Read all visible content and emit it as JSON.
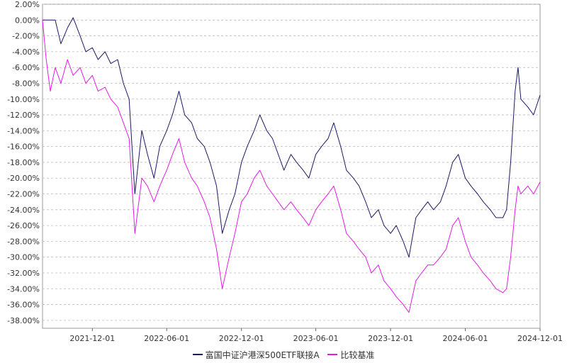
{
  "chart_data": {
    "type": "line",
    "ylim": [
      -0.39,
      0.02
    ],
    "y_ticks": [
      "2.00%",
      "0.00%",
      "-2.00%",
      "-4.00%",
      "-6.00%",
      "-8.00%",
      "-10.00%",
      "-12.00%",
      "-14.00%",
      "-16.00%",
      "-18.00%",
      "-20.00%",
      "-22.00%",
      "-24.00%",
      "-26.00%",
      "-28.00%",
      "-30.00%",
      "-32.00%",
      "-34.00%",
      "-36.00%",
      "-38.00%"
    ],
    "y_tick_values": [
      0.02,
      0.0,
      -0.02,
      -0.04,
      -0.06,
      -0.08,
      -0.1,
      -0.12,
      -0.14,
      -0.16,
      -0.18,
      -0.2,
      -0.22,
      -0.24,
      -0.26,
      -0.28,
      -0.3,
      -0.32,
      -0.34,
      -0.36,
      -0.38
    ],
    "xlim": [
      "2021-08-01",
      "2024-12-01"
    ],
    "x_ticks": [
      "2021-12-01",
      "2022-06-01",
      "2022-12-01",
      "2023-06-01",
      "2023-12-01",
      "2024-06-01",
      "2024-12-01"
    ],
    "grid": true,
    "legend_position": "bottom",
    "series": [
      {
        "name": "富国中证沪港深500ETF联接A",
        "color": "#1a1a66",
        "points": [
          [
            "2021-08-01",
            0.0
          ],
          [
            "2021-09-01",
            0.0
          ],
          [
            "2021-09-15",
            -0.03
          ],
          [
            "2021-10-01",
            -0.01
          ],
          [
            "2021-10-15",
            0.003
          ],
          [
            "2021-11-01",
            -0.02
          ],
          [
            "2021-11-15",
            -0.04
          ],
          [
            "2021-12-01",
            -0.035
          ],
          [
            "2021-12-15",
            -0.05
          ],
          [
            "2022-01-01",
            -0.04
          ],
          [
            "2022-01-15",
            -0.055
          ],
          [
            "2022-02-01",
            -0.05
          ],
          [
            "2022-02-15",
            -0.08
          ],
          [
            "2022-03-01",
            -0.1
          ],
          [
            "2022-03-15",
            -0.22
          ],
          [
            "2022-04-01",
            -0.14
          ],
          [
            "2022-04-15",
            -0.17
          ],
          [
            "2022-05-01",
            -0.2
          ],
          [
            "2022-05-15",
            -0.16
          ],
          [
            "2022-06-01",
            -0.14
          ],
          [
            "2022-06-15",
            -0.12
          ],
          [
            "2022-07-01",
            -0.09
          ],
          [
            "2022-07-15",
            -0.12
          ],
          [
            "2022-08-01",
            -0.13
          ],
          [
            "2022-08-15",
            -0.15
          ],
          [
            "2022-09-01",
            -0.16
          ],
          [
            "2022-09-15",
            -0.18
          ],
          [
            "2022-10-01",
            -0.21
          ],
          [
            "2022-10-15",
            -0.27
          ],
          [
            "2022-11-01",
            -0.24
          ],
          [
            "2022-11-15",
            -0.22
          ],
          [
            "2022-12-01",
            -0.18
          ],
          [
            "2022-12-15",
            -0.16
          ],
          [
            "2023-01-01",
            -0.14
          ],
          [
            "2023-01-15",
            -0.12
          ],
          [
            "2023-02-01",
            -0.14
          ],
          [
            "2023-02-15",
            -0.15
          ],
          [
            "2023-03-01",
            -0.17
          ],
          [
            "2023-03-15",
            -0.19
          ],
          [
            "2023-04-01",
            -0.17
          ],
          [
            "2023-04-15",
            -0.18
          ],
          [
            "2023-05-01",
            -0.19
          ],
          [
            "2023-05-15",
            -0.2
          ],
          [
            "2023-06-01",
            -0.17
          ],
          [
            "2023-06-15",
            -0.16
          ],
          [
            "2023-07-01",
            -0.15
          ],
          [
            "2023-07-15",
            -0.13
          ],
          [
            "2023-08-01",
            -0.16
          ],
          [
            "2023-08-15",
            -0.19
          ],
          [
            "2023-09-01",
            -0.2
          ],
          [
            "2023-09-15",
            -0.21
          ],
          [
            "2023-10-01",
            -0.23
          ],
          [
            "2023-10-15",
            -0.25
          ],
          [
            "2023-11-01",
            -0.24
          ],
          [
            "2023-11-15",
            -0.26
          ],
          [
            "2023-12-01",
            -0.27
          ],
          [
            "2023-12-15",
            -0.26
          ],
          [
            "2024-01-01",
            -0.28
          ],
          [
            "2024-01-15",
            -0.3
          ],
          [
            "2024-02-01",
            -0.25
          ],
          [
            "2024-02-15",
            -0.24
          ],
          [
            "2024-03-01",
            -0.23
          ],
          [
            "2024-03-15",
            -0.24
          ],
          [
            "2024-04-01",
            -0.23
          ],
          [
            "2024-04-15",
            -0.21
          ],
          [
            "2024-05-01",
            -0.18
          ],
          [
            "2024-05-15",
            -0.17
          ],
          [
            "2024-06-01",
            -0.2
          ],
          [
            "2024-06-15",
            -0.21
          ],
          [
            "2024-07-01",
            -0.22
          ],
          [
            "2024-07-15",
            -0.23
          ],
          [
            "2024-08-01",
            -0.24
          ],
          [
            "2024-08-15",
            -0.25
          ],
          [
            "2024-09-01",
            -0.25
          ],
          [
            "2024-09-10",
            -0.24
          ],
          [
            "2024-09-20",
            -0.18
          ],
          [
            "2024-10-01",
            -0.09
          ],
          [
            "2024-10-08",
            -0.06
          ],
          [
            "2024-10-15",
            -0.1
          ],
          [
            "2024-11-01",
            -0.11
          ],
          [
            "2024-11-15",
            -0.12
          ],
          [
            "2024-12-01",
            -0.095
          ]
        ]
      },
      {
        "name": "比较基准",
        "color": "#e31ae3",
        "points": [
          [
            "2021-08-01",
            0.0
          ],
          [
            "2021-08-10",
            -0.05
          ],
          [
            "2021-08-20",
            -0.09
          ],
          [
            "2021-09-01",
            -0.06
          ],
          [
            "2021-09-15",
            -0.08
          ],
          [
            "2021-10-01",
            -0.05
          ],
          [
            "2021-10-15",
            -0.07
          ],
          [
            "2021-11-01",
            -0.06
          ],
          [
            "2021-11-15",
            -0.08
          ],
          [
            "2021-12-01",
            -0.07
          ],
          [
            "2021-12-15",
            -0.09
          ],
          [
            "2022-01-01",
            -0.085
          ],
          [
            "2022-01-15",
            -0.1
          ],
          [
            "2022-02-01",
            -0.11
          ],
          [
            "2022-02-15",
            -0.13
          ],
          [
            "2022-03-01",
            -0.15
          ],
          [
            "2022-03-15",
            -0.27
          ],
          [
            "2022-04-01",
            -0.2
          ],
          [
            "2022-04-15",
            -0.21
          ],
          [
            "2022-05-01",
            -0.23
          ],
          [
            "2022-05-15",
            -0.21
          ],
          [
            "2022-06-01",
            -0.19
          ],
          [
            "2022-06-15",
            -0.17
          ],
          [
            "2022-07-01",
            -0.15
          ],
          [
            "2022-07-15",
            -0.18
          ],
          [
            "2022-08-01",
            -0.2
          ],
          [
            "2022-08-15",
            -0.21
          ],
          [
            "2022-09-01",
            -0.23
          ],
          [
            "2022-09-15",
            -0.25
          ],
          [
            "2022-10-01",
            -0.29
          ],
          [
            "2022-10-15",
            -0.34
          ],
          [
            "2022-11-01",
            -0.3
          ],
          [
            "2022-11-15",
            -0.27
          ],
          [
            "2022-12-01",
            -0.23
          ],
          [
            "2022-12-15",
            -0.22
          ],
          [
            "2023-01-01",
            -0.2
          ],
          [
            "2023-01-15",
            -0.19
          ],
          [
            "2023-02-01",
            -0.21
          ],
          [
            "2023-02-15",
            -0.22
          ],
          [
            "2023-03-01",
            -0.23
          ],
          [
            "2023-03-15",
            -0.24
          ],
          [
            "2023-04-01",
            -0.23
          ],
          [
            "2023-04-15",
            -0.24
          ],
          [
            "2023-05-01",
            -0.25
          ],
          [
            "2023-05-15",
            -0.26
          ],
          [
            "2023-06-01",
            -0.24
          ],
          [
            "2023-06-15",
            -0.23
          ],
          [
            "2023-07-01",
            -0.22
          ],
          [
            "2023-07-15",
            -0.21
          ],
          [
            "2023-08-01",
            -0.24
          ],
          [
            "2023-08-15",
            -0.27
          ],
          [
            "2023-09-01",
            -0.28
          ],
          [
            "2023-09-15",
            -0.29
          ],
          [
            "2023-10-01",
            -0.3
          ],
          [
            "2023-10-15",
            -0.32
          ],
          [
            "2023-11-01",
            -0.31
          ],
          [
            "2023-11-15",
            -0.33
          ],
          [
            "2023-12-01",
            -0.34
          ],
          [
            "2023-12-15",
            -0.35
          ],
          [
            "2024-01-01",
            -0.36
          ],
          [
            "2024-01-15",
            -0.37
          ],
          [
            "2024-02-01",
            -0.33
          ],
          [
            "2024-02-15",
            -0.32
          ],
          [
            "2024-03-01",
            -0.31
          ],
          [
            "2024-03-15",
            -0.31
          ],
          [
            "2024-04-01",
            -0.3
          ],
          [
            "2024-04-15",
            -0.29
          ],
          [
            "2024-05-01",
            -0.26
          ],
          [
            "2024-05-15",
            -0.25
          ],
          [
            "2024-06-01",
            -0.28
          ],
          [
            "2024-06-15",
            -0.3
          ],
          [
            "2024-07-01",
            -0.31
          ],
          [
            "2024-07-15",
            -0.32
          ],
          [
            "2024-08-01",
            -0.33
          ],
          [
            "2024-08-15",
            -0.34
          ],
          [
            "2024-09-01",
            -0.345
          ],
          [
            "2024-09-10",
            -0.34
          ],
          [
            "2024-09-20",
            -0.3
          ],
          [
            "2024-10-01",
            -0.24
          ],
          [
            "2024-10-08",
            -0.21
          ],
          [
            "2024-10-15",
            -0.22
          ],
          [
            "2024-11-01",
            -0.21
          ],
          [
            "2024-11-15",
            -0.22
          ],
          [
            "2024-12-01",
            -0.205
          ]
        ]
      }
    ]
  }
}
